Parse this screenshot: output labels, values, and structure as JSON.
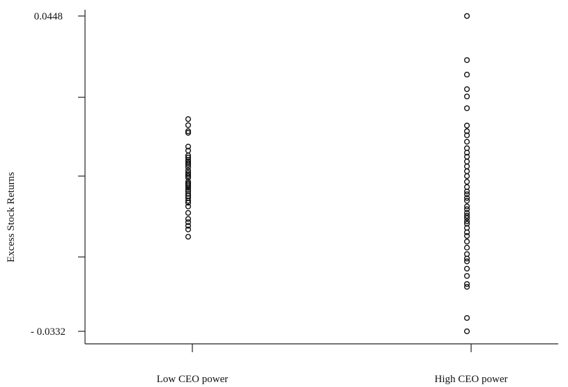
{
  "chart_data": {
    "type": "scatter",
    "title": "",
    "xlabel": "",
    "ylabel": "Excess  Stock Returns",
    "categories": [
      "Low CEO power",
      "High CEO power"
    ],
    "ylim": [
      -0.0332,
      0.0448
    ],
    "y_tick_labels": [
      "0.0448",
      "- 0.0332"
    ],
    "y_tick_values": [
      0.0448,
      0.0247,
      0.0052,
      -0.0148,
      -0.0332
    ],
    "grid": false,
    "legend": "none",
    "marker": "open circle",
    "series": [
      {
        "category": "Low CEO power",
        "values": [
          0.0193,
          0.0178,
          0.0163,
          0.0159,
          0.0125,
          0.0115,
          0.0103,
          0.0098,
          0.0092,
          0.0088,
          0.0084,
          0.008,
          0.0074,
          0.0066,
          0.006,
          0.0056,
          0.0052,
          0.0048,
          0.0038,
          0.0034,
          0.0031,
          0.0027,
          0.0023,
          0.0018,
          0.0014,
          0.0008,
          0.0003,
          -0.0002,
          -0.0009,
          -0.0014,
          -0.0023,
          -0.0039,
          -0.0054,
          -0.0062,
          -0.0071,
          -0.008,
          -0.0098
        ]
      },
      {
        "category": "High CEO power",
        "values": [
          0.0448,
          0.0339,
          0.0303,
          0.0267,
          0.0249,
          0.022,
          0.0177,
          0.0163,
          0.0153,
          0.0137,
          0.0121,
          0.011,
          0.01,
          0.0088,
          0.0076,
          0.0064,
          0.0052,
          0.0038,
          0.0025,
          0.0014,
          0.0007,
          -0.0002,
          -0.0009,
          -0.0023,
          -0.003,
          -0.0039,
          -0.0046,
          -0.0052,
          -0.006,
          -0.0066,
          -0.0076,
          -0.0087,
          -0.0096,
          -0.011,
          -0.0125,
          -0.0141,
          -0.0152,
          -0.0159,
          -0.0177,
          -0.0195,
          -0.0215,
          -0.0222,
          -0.0299,
          -0.0332
        ]
      }
    ]
  }
}
